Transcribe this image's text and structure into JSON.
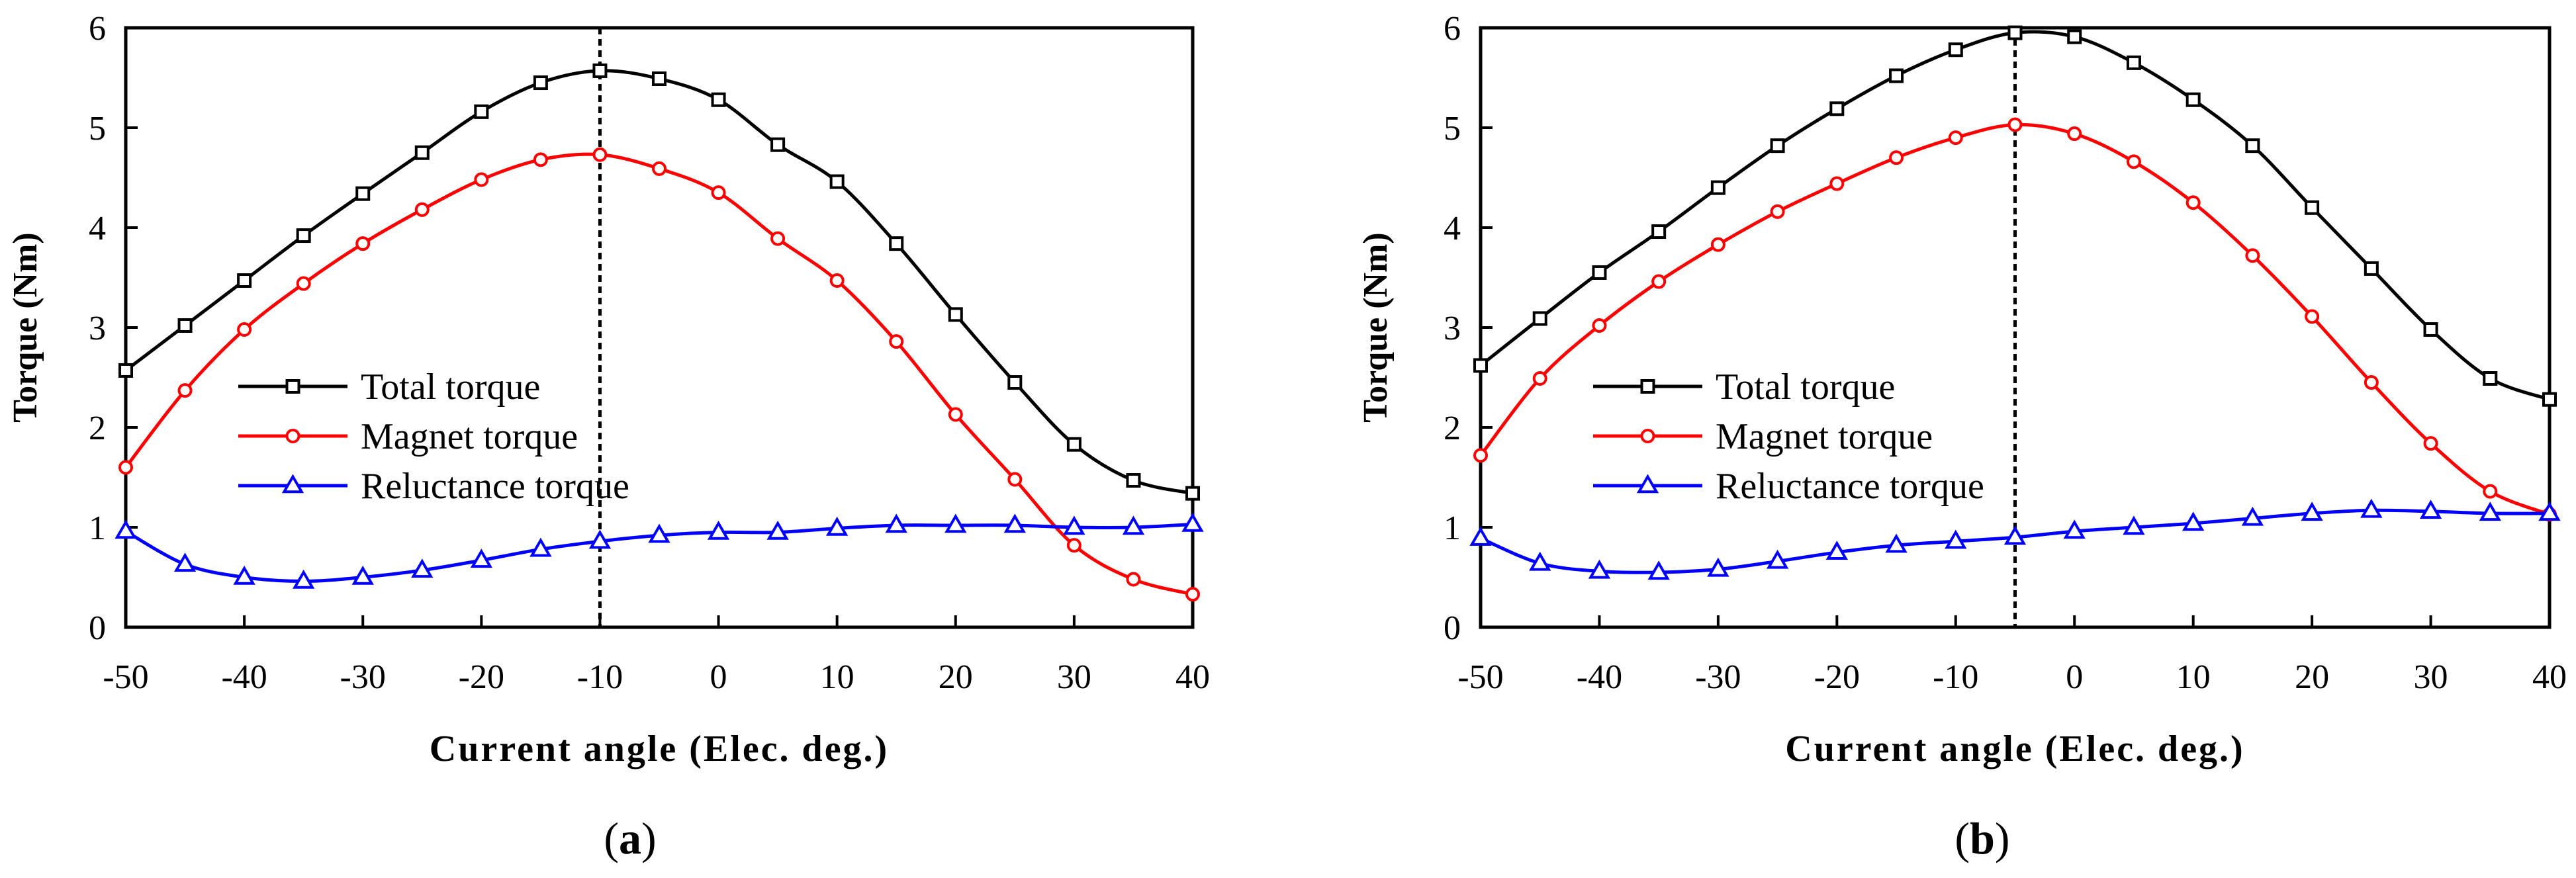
{
  "chart_data": [
    {
      "panel": "(a)",
      "panel_letter": "a",
      "type": "line",
      "xlabel": "Current angle (Elec. deg.)",
      "ylabel": "Torque (Nm)",
      "xlim": [
        -50,
        40
      ],
      "ylim": [
        0,
        6
      ],
      "xticks": [
        "-50",
        "-40",
        "-30",
        "-20",
        "-10",
        "0",
        "10",
        "20",
        "30",
        "40"
      ],
      "yticks": [
        "0",
        "1",
        "2",
        "3",
        "4",
        "5",
        "6"
      ],
      "max_torque_angle": -10,
      "legend_position": "center-left",
      "x": [
        -50,
        -45,
        -40,
        -35,
        -30,
        -25,
        -20,
        -15,
        -10,
        -5,
        0,
        5,
        10,
        15,
        20,
        25,
        30,
        35,
        40
      ],
      "series": [
        {
          "name": "Total torque",
          "color": "#000000",
          "marker": "square",
          "values": [
            2.57,
            3.02,
            3.47,
            3.92,
            4.34,
            4.75,
            5.16,
            5.45,
            5.57,
            5.49,
            5.28,
            4.83,
            4.46,
            3.84,
            3.13,
            2.45,
            1.83,
            1.47,
            1.34
          ]
        },
        {
          "name": "Magnet torque",
          "color": "#ff0000",
          "marker": "circle",
          "values": [
            1.6,
            2.37,
            2.98,
            3.44,
            3.84,
            4.18,
            4.48,
            4.68,
            4.73,
            4.59,
            4.35,
            3.89,
            3.47,
            2.86,
            2.13,
            1.48,
            0.82,
            0.48,
            0.33
          ]
        },
        {
          "name": "Reluctance torque",
          "color": "#0000ff",
          "marker": "triangle",
          "values": [
            0.96,
            0.63,
            0.5,
            0.46,
            0.5,
            0.57,
            0.67,
            0.78,
            0.86,
            0.92,
            0.95,
            0.95,
            0.99,
            1.02,
            1.02,
            1.02,
            1.0,
            1.0,
            1.03
          ]
        }
      ]
    },
    {
      "panel": "(b)",
      "panel_letter": "b",
      "type": "line",
      "xlabel": "Current angle (Elec. deg.)",
      "ylabel": "Torque (Nm)",
      "xlim": [
        -50,
        40
      ],
      "ylim": [
        0,
        6
      ],
      "xticks": [
        "-50",
        "-40",
        "-30",
        "-20",
        "-10",
        "0",
        "10",
        "20",
        "30",
        "40"
      ],
      "yticks": [
        "0",
        "1",
        "2",
        "3",
        "4",
        "5",
        "6"
      ],
      "max_torque_angle": -5,
      "legend_position": "center-left",
      "x": [
        -50,
        -45,
        -40,
        -35,
        -30,
        -25,
        -20,
        -15,
        -10,
        -5,
        0,
        5,
        10,
        15,
        20,
        25,
        30,
        35,
        40
      ],
      "series": [
        {
          "name": "Total torque",
          "color": "#000000",
          "marker": "square",
          "values": [
            2.62,
            3.09,
            3.55,
            3.96,
            4.4,
            4.82,
            5.19,
            5.52,
            5.78,
            5.95,
            5.91,
            5.65,
            5.28,
            4.82,
            4.2,
            3.59,
            2.98,
            2.49,
            2.28
          ]
        },
        {
          "name": "Magnet torque",
          "color": "#ff0000",
          "marker": "circle",
          "values": [
            1.72,
            2.49,
            3.02,
            3.46,
            3.83,
            4.16,
            4.44,
            4.7,
            4.9,
            5.03,
            4.94,
            4.66,
            4.25,
            3.72,
            3.11,
            2.45,
            1.84,
            1.36,
            1.13
          ]
        },
        {
          "name": "Reluctance torque",
          "color": "#0000ff",
          "marker": "triangle",
          "values": [
            0.89,
            0.64,
            0.56,
            0.55,
            0.58,
            0.66,
            0.75,
            0.82,
            0.86,
            0.9,
            0.96,
            1.0,
            1.04,
            1.09,
            1.14,
            1.17,
            1.16,
            1.14,
            1.14
          ]
        }
      ]
    }
  ]
}
